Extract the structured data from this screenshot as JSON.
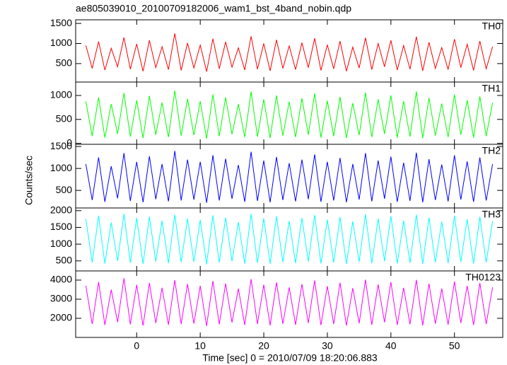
{
  "chart_data": [
    {
      "type": "line",
      "title": "ae805039010_20100709182006_wam1_bst_4band_nobin.qdp",
      "label": "TH0",
      "color": "#ff0000",
      "xlim": [
        -9.6,
        57.6
      ],
      "ylim": [
        40,
        1590
      ],
      "yticks": [
        500,
        1000,
        1500
      ],
      "x": [
        -8,
        -7,
        -6,
        -5,
        -4,
        -3,
        -2,
        -1,
        0,
        1,
        2,
        3,
        4,
        5,
        6,
        7,
        8,
        9,
        10,
        11,
        12,
        13,
        14,
        15,
        16,
        17,
        18,
        19,
        20,
        21,
        22,
        23,
        24,
        25,
        26,
        27,
        28,
        29,
        30,
        31,
        32,
        33,
        34,
        35,
        36,
        37,
        38,
        39,
        40,
        41,
        42,
        43,
        44,
        45,
        46,
        47,
        48,
        49,
        50,
        51,
        52,
        53,
        54,
        55,
        56
      ],
      "values": [
        950,
        380,
        1050,
        340,
        880,
        420,
        1150,
        360,
        990,
        310,
        1080,
        400,
        920,
        350,
        1250,
        330,
        1010,
        390,
        960,
        300,
        1120,
        370,
        1040,
        410,
        890,
        340,
        1180,
        360,
        1000,
        320,
        1090,
        380,
        940,
        350,
        1020,
        400,
        1130,
        330,
        970,
        370,
        1060,
        310,
        910,
        390,
        1140,
        350,
        1000,
        420,
        1080,
        340,
        950,
        360,
        1170,
        320,
        1030,
        380,
        900,
        350,
        1110,
        400,
        980,
        330,
        1060,
        370,
        920
      ]
    },
    {
      "type": "line",
      "label": "TH1",
      "color": "#00ff00",
      "xlim": [
        -9.6,
        57.6
      ],
      "ylim": [
        -20,
        1280
      ],
      "yticks": [
        0,
        500,
        1000
      ],
      "x": [
        -8,
        -7,
        -6,
        -5,
        -4,
        -3,
        -2,
        -1,
        0,
        1,
        2,
        3,
        4,
        5,
        6,
        7,
        8,
        9,
        10,
        11,
        12,
        13,
        14,
        15,
        16,
        17,
        18,
        19,
        20,
        21,
        22,
        23,
        24,
        25,
        26,
        27,
        28,
        29,
        30,
        31,
        32,
        33,
        34,
        35,
        36,
        37,
        38,
        39,
        40,
        41,
        42,
        43,
        44,
        45,
        46,
        47,
        48,
        49,
        50,
        51,
        52,
        53,
        54,
        55,
        56
      ],
      "values": [
        880,
        150,
        960,
        120,
        820,
        200,
        1050,
        140,
        900,
        110,
        990,
        180,
        850,
        130,
        1100,
        160,
        930,
        170,
        880,
        100,
        1020,
        150,
        960,
        190,
        820,
        130,
        1080,
        140,
        920,
        110,
        1000,
        160,
        870,
        130,
        940,
        180,
        1040,
        120,
        890,
        150,
        970,
        110,
        840,
        170,
        1060,
        130,
        920,
        200,
        1000,
        120,
        880,
        140,
        1080,
        110,
        950,
        160,
        830,
        130,
        1020,
        180,
        900,
        120,
        980,
        150,
        850
      ]
    },
    {
      "type": "line",
      "label": "TH2",
      "color": "#0000ff",
      "ylabel": "Counts/sec",
      "xlim": [
        -9.6,
        57.6
      ],
      "ylim": [
        100,
        1550
      ],
      "yticks": [
        500,
        1000,
        1500
      ],
      "x": [
        -8,
        -7,
        -6,
        -5,
        -4,
        -3,
        -2,
        -1,
        0,
        1,
        2,
        3,
        4,
        5,
        6,
        7,
        8,
        9,
        10,
        11,
        12,
        13,
        14,
        15,
        16,
        17,
        18,
        19,
        20,
        21,
        22,
        23,
        24,
        25,
        26,
        27,
        28,
        29,
        30,
        31,
        32,
        33,
        34,
        35,
        36,
        37,
        38,
        39,
        40,
        41,
        42,
        43,
        44,
        45,
        46,
        47,
        48,
        49,
        50,
        51,
        52,
        53,
        54,
        55,
        56
      ],
      "values": [
        1100,
        280,
        1250,
        240,
        1050,
        320,
        1350,
        260,
        1150,
        230,
        1280,
        300,
        1100,
        250,
        1400,
        270,
        1200,
        290,
        1150,
        220,
        1300,
        270,
        1220,
        310,
        1080,
        240,
        1380,
        260,
        1180,
        230,
        1260,
        280,
        1120,
        250,
        1200,
        300,
        1320,
        240,
        1150,
        270,
        1240,
        230,
        1100,
        290,
        1350,
        250,
        1180,
        310,
        1270,
        240,
        1130,
        260,
        1360,
        230,
        1210,
        280,
        1090,
        250,
        1300,
        290,
        1160,
        240,
        1250,
        270,
        1100
      ]
    },
    {
      "type": "line",
      "label": "TH3",
      "color": "#00ffff",
      "xlim": [
        -9.6,
        57.6
      ],
      "ylim": [
        200,
        2080
      ],
      "yticks": [
        500,
        1000,
        1500,
        2000
      ],
      "x": [
        -8,
        -7,
        -6,
        -5,
        -4,
        -3,
        -2,
        -1,
        0,
        1,
        2,
        3,
        4,
        5,
        6,
        7,
        8,
        9,
        10,
        11,
        12,
        13,
        14,
        15,
        16,
        17,
        18,
        19,
        20,
        21,
        22,
        23,
        24,
        25,
        26,
        27,
        28,
        29,
        30,
        31,
        32,
        33,
        34,
        35,
        36,
        37,
        38,
        39,
        40,
        41,
        42,
        43,
        44,
        45,
        46,
        47,
        48,
        49,
        50,
        51,
        52,
        53,
        54,
        55,
        56
      ],
      "values": [
        1750,
        450,
        1850,
        420,
        1650,
        500,
        1900,
        440,
        1780,
        410,
        1820,
        480,
        1700,
        430,
        1880,
        460,
        1760,
        470,
        1720,
        400,
        1860,
        450,
        1790,
        490,
        1660,
        420,
        1900,
        440,
        1770,
        410,
        1830,
        460,
        1690,
        430,
        1780,
        480,
        1870,
        420,
        1730,
        450,
        1810,
        410,
        1680,
        470,
        1890,
        430,
        1760,
        490,
        1840,
        420,
        1700,
        440,
        1880,
        410,
        1790,
        460,
        1670,
        430,
        1850,
        470,
        1740,
        420,
        1820,
        450,
        1690
      ]
    },
    {
      "type": "line",
      "label": "TH0123",
      "color": "#ff00ff",
      "xlabel": "Time [sec] 0 = 2010/07/09 18:20:06.883",
      "xlim": [
        -9.6,
        57.6
      ],
      "ylim": [
        1000,
        4480
      ],
      "yticks": [
        2000,
        3000,
        4000
      ],
      "xticks": [
        0,
        10,
        20,
        30,
        40,
        50
      ],
      "x": [
        -8,
        -7,
        -6,
        -5,
        -4,
        -3,
        -2,
        -1,
        0,
        1,
        2,
        3,
        4,
        5,
        6,
        7,
        8,
        9,
        10,
        11,
        12,
        13,
        14,
        15,
        16,
        17,
        18,
        19,
        20,
        21,
        22,
        23,
        24,
        25,
        26,
        27,
        28,
        29,
        30,
        31,
        32,
        33,
        34,
        35,
        36,
        37,
        38,
        39,
        40,
        41,
        42,
        43,
        44,
        45,
        46,
        47,
        48,
        49,
        50,
        51,
        52,
        53,
        54,
        55,
        56
      ],
      "values": [
        3700,
        1700,
        3900,
        1650,
        3500,
        1800,
        4100,
        1680,
        3750,
        1620,
        3850,
        1750,
        3600,
        1660,
        4000,
        1700,
        3800,
        1720,
        3700,
        1600,
        3950,
        1690,
        3820,
        1780,
        3550,
        1650,
        4050,
        1700,
        3760,
        1630,
        3880,
        1710,
        3620,
        1660,
        3790,
        1750,
        3980,
        1640,
        3680,
        1700,
        3860,
        1620,
        3580,
        1740,
        4020,
        1660,
        3770,
        1790,
        3900,
        1650,
        3600,
        1690,
        4010,
        1630,
        3810,
        1720,
        3560,
        1670,
        3930,
        1760,
        3700,
        1650,
        3850,
        1700,
        3620
      ]
    }
  ]
}
